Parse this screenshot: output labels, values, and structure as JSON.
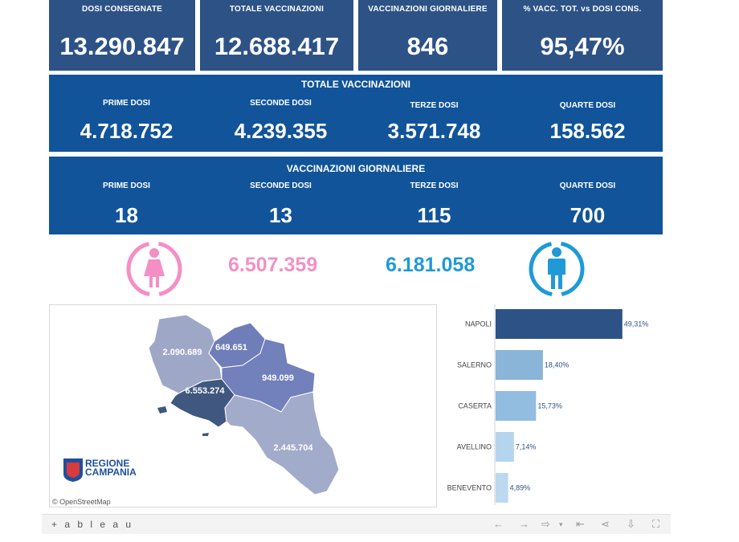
{
  "kpis": [
    {
      "label": "DOSI CONSEGNATE",
      "value": "13.290.847"
    },
    {
      "label": "TOTALE VACCINAZIONI",
      "value": "12.688.417"
    },
    {
      "label": "VACCINAZIONI GIORNALIERE",
      "value": "846"
    },
    {
      "label": "% VACC. TOT. vs DOSI CONS.",
      "value": "95,47%"
    }
  ],
  "totale": {
    "title": "TOTALE VACCINAZIONI",
    "items": [
      {
        "label": "PRIME DOSI",
        "value": "4.718.752"
      },
      {
        "label": "SECONDE DOSI",
        "value": "4.239.355"
      },
      {
        "label": "TERZE DOSI",
        "value": "3.571.748"
      },
      {
        "label": "QUARTE DOSI",
        "value": "158.562"
      }
    ]
  },
  "giornaliere": {
    "title": "VACCINAZIONI GIORNALIERE",
    "items": [
      {
        "label": "PRIME DOSI",
        "value": "18"
      },
      {
        "label": "SECONDE DOSI",
        "value": "13"
      },
      {
        "label": "TERZE DOSI",
        "value": "115"
      },
      {
        "label": "QUARTE DOSI",
        "value": "700"
      }
    ]
  },
  "gender": {
    "female_value": "6.507.359",
    "male_value": "6.181.058",
    "female_color": "#f48fc6",
    "male_color": "#1f9ad6"
  },
  "map": {
    "regions": [
      {
        "name": "Caserta",
        "value": "2.090.689"
      },
      {
        "name": "Benevento",
        "value": "649.651"
      },
      {
        "name": "Avellino",
        "value": "949.099"
      },
      {
        "name": "Napoli",
        "value": "6.553.274"
      },
      {
        "name": "Salerno",
        "value": "2.445.704"
      }
    ],
    "logo_line1": "REGIONE",
    "logo_line2": "CAMPANIA",
    "attribution": "© OpenStreetMap"
  },
  "chart_data": {
    "type": "bar",
    "orientation": "horizontal",
    "categories": [
      "NAPOLI",
      "SALERNO",
      "CASERTA",
      "AVELLINO",
      "BENEVENTO"
    ],
    "values": [
      49.31,
      18.4,
      15.73,
      7.14,
      4.89
    ],
    "labels": [
      "49,31%",
      "18,40%",
      "15,73%",
      "7,14%",
      "4,89%"
    ],
    "colors": [
      "#2d5286",
      "#8ab4d8",
      "#92bce0",
      "#b5d5ee",
      "#bcd9f0"
    ],
    "xlim": [
      0,
      50
    ]
  },
  "footer": {
    "logo": "+ a b l e a u"
  }
}
